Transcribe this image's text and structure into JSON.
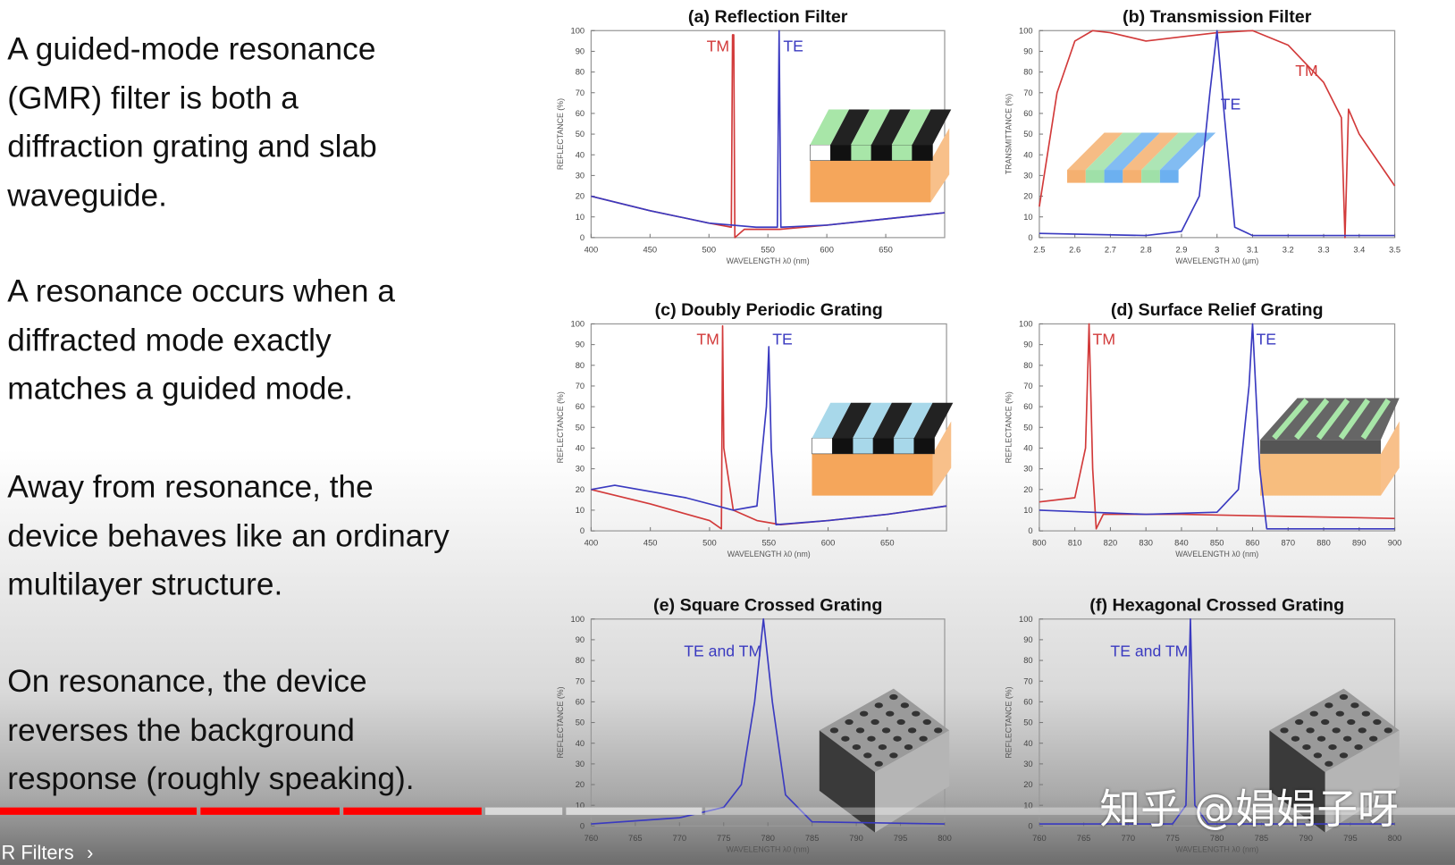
{
  "slide": {
    "paragraphs": [
      "A guided-mode resonance\n(GMR) filter is both a\ndiffraction grating and slab\nwaveguide.",
      "A resonance occurs when a\ndiffracted mode exactly\nmatches a guided mode.",
      "Away from resonance, the\ndevice behaves like an ordinary\nmultilayer structure.",
      "On resonance, the device\nreverses the background\nresponse (roughly speaking)."
    ]
  },
  "player": {
    "chapter_title": "MR Filters",
    "chapter_chevron": "›",
    "progress_fraction": 0.331,
    "buffered_fraction": 0.482,
    "played_color": "#ff0000",
    "buffered_color": "#d9d9d9"
  },
  "watermark": "知乎 @娟娟子呀",
  "colors": {
    "TE": "#3a3ac0",
    "TM": "#d23a3a"
  },
  "chart_data": [
    {
      "id": "a",
      "type": "line",
      "title": "(a) Reflection Filter",
      "xlabel": "WAVELENGTH λ0 (nm)",
      "ylabel": "REFLECTANCE (%)",
      "xlim": [
        400,
        700
      ],
      "ylim": [
        0,
        100
      ],
      "x_ticks": [
        400,
        450,
        500,
        550,
        600,
        650
      ],
      "y_ticks": [
        0,
        10,
        20,
        30,
        40,
        50,
        60,
        70,
        80,
        90,
        100
      ],
      "grid": false,
      "inset": "stripe-grating",
      "series": [
        {
          "name": "TM",
          "color": "#d23a3a",
          "points": [
            [
              400,
              20
            ],
            [
              450,
              13
            ],
            [
              500,
              7
            ],
            [
              519,
              5
            ],
            [
              520,
              98
            ],
            [
              521,
              98
            ],
            [
              522,
              0
            ],
            [
              530,
              4
            ],
            [
              560,
              4
            ],
            [
              600,
              6
            ],
            [
              650,
              9
            ],
            [
              700,
              12
            ]
          ]
        },
        {
          "name": "TE",
          "color": "#3a3ac0",
          "points": [
            [
              400,
              20
            ],
            [
              450,
              13
            ],
            [
              500,
              7
            ],
            [
              540,
              5
            ],
            [
              558,
              5
            ],
            [
              559.5,
              100
            ],
            [
              561,
              5
            ],
            [
              600,
              6
            ],
            [
              650,
              9
            ],
            [
              700,
              12
            ]
          ]
        }
      ],
      "annotations": [
        {
          "text": "TM",
          "x": 498,
          "y": 90,
          "color": "#d23a3a"
        },
        {
          "text": "TE",
          "x": 563,
          "y": 90,
          "color": "#3a3ac0"
        }
      ]
    },
    {
      "id": "b",
      "type": "line",
      "title": "(b) Transmission Filter",
      "xlabel": "WAVELENGTH λ0 (μm)",
      "ylabel": "TRANSMITTANCE (%)",
      "xlim": [
        2.5,
        3.5
      ],
      "ylim": [
        0,
        100
      ],
      "x_ticks": [
        2.5,
        2.6,
        2.7,
        2.8,
        2.9,
        3,
        3.1,
        3.2,
        3.3,
        3.4,
        3.5
      ],
      "y_ticks": [
        0,
        10,
        20,
        30,
        40,
        50,
        60,
        70,
        80,
        90,
        100
      ],
      "grid": false,
      "inset": "multi-stripe",
      "series": [
        {
          "name": "TM",
          "color": "#d23a3a",
          "points": [
            [
              2.5,
              15
            ],
            [
              2.55,
              70
            ],
            [
              2.6,
              95
            ],
            [
              2.65,
              100
            ],
            [
              2.7,
              99
            ],
            [
              2.8,
              95
            ],
            [
              2.9,
              97
            ],
            [
              3.0,
              99
            ],
            [
              3.1,
              100
            ],
            [
              3.2,
              93
            ],
            [
              3.3,
              75
            ],
            [
              3.35,
              58
            ],
            [
              3.36,
              0
            ],
            [
              3.37,
              62
            ],
            [
              3.4,
              50
            ],
            [
              3.5,
              25
            ]
          ]
        },
        {
          "name": "TE",
          "color": "#3a3ac0",
          "points": [
            [
              2.5,
              2
            ],
            [
              2.8,
              1
            ],
            [
              2.9,
              3
            ],
            [
              2.95,
              20
            ],
            [
              2.98,
              70
            ],
            [
              3.0,
              100
            ],
            [
              3.02,
              60
            ],
            [
              3.05,
              5
            ],
            [
              3.1,
              1
            ],
            [
              3.5,
              1
            ]
          ]
        }
      ],
      "annotations": [
        {
          "text": "TM",
          "x": 3.22,
          "y": 78,
          "color": "#d23a3a"
        },
        {
          "text": "TE",
          "x": 3.01,
          "y": 62,
          "color": "#3a3ac0"
        }
      ]
    },
    {
      "id": "c",
      "type": "line",
      "title": "(c) Doubly Periodic Grating",
      "xlabel": "WAVELENGTH λ0 (nm)",
      "ylabel": "REFLECTANCE (%)",
      "xlim": [
        400,
        700
      ],
      "ylim": [
        0,
        100
      ],
      "x_ticks": [
        400,
        450,
        500,
        550,
        600,
        650
      ],
      "y_ticks": [
        0,
        10,
        20,
        30,
        40,
        50,
        60,
        70,
        80,
        90,
        100
      ],
      "grid": false,
      "inset": "double-grating",
      "series": [
        {
          "name": "TM",
          "color": "#d23a3a",
          "points": [
            [
              400,
              20
            ],
            [
              450,
              13
            ],
            [
              500,
              5
            ],
            [
              510,
              1
            ],
            [
              511,
              99
            ],
            [
              512,
              40
            ],
            [
              520,
              10
            ],
            [
              540,
              5
            ],
            [
              560,
              3
            ],
            [
              600,
              5
            ],
            [
              650,
              8
            ],
            [
              700,
              12
            ]
          ]
        },
        {
          "name": "TE",
          "color": "#3a3ac0",
          "points": [
            [
              400,
              20
            ],
            [
              420,
              22
            ],
            [
              480,
              16
            ],
            [
              520,
              10
            ],
            [
              540,
              12
            ],
            [
              548,
              60
            ],
            [
              550,
              89
            ],
            [
              552,
              40
            ],
            [
              556,
              3
            ],
            [
              600,
              5
            ],
            [
              650,
              8
            ],
            [
              700,
              12
            ]
          ]
        }
      ],
      "annotations": [
        {
          "text": "TM",
          "x": 489,
          "y": 90,
          "color": "#d23a3a"
        },
        {
          "text": "TE",
          "x": 553,
          "y": 90,
          "color": "#3a3ac0"
        }
      ]
    },
    {
      "id": "d",
      "type": "line",
      "title": "(d) Surface Relief Grating",
      "xlabel": "WAVELENGTH λ0 (nm)",
      "ylabel": "REFLECTANCE (%)",
      "xlim": [
        800,
        900
      ],
      "ylim": [
        0,
        100
      ],
      "x_ticks": [
        800,
        810,
        820,
        830,
        840,
        850,
        860,
        870,
        880,
        890,
        900
      ],
      "y_ticks": [
        0,
        10,
        20,
        30,
        40,
        50,
        60,
        70,
        80,
        90,
        100
      ],
      "grid": false,
      "inset": "relief-grating",
      "series": [
        {
          "name": "TM",
          "color": "#d23a3a",
          "points": [
            [
              800,
              14
            ],
            [
              810,
              16
            ],
            [
              813,
              40
            ],
            [
              814,
              100
            ],
            [
              815,
              30
            ],
            [
              816,
              1
            ],
            [
              818,
              8
            ],
            [
              840,
              8
            ],
            [
              870,
              7
            ],
            [
              900,
              6
            ]
          ]
        },
        {
          "name": "TE",
          "color": "#3a3ac0",
          "points": [
            [
              800,
              10
            ],
            [
              830,
              8
            ],
            [
              850,
              9
            ],
            [
              856,
              20
            ],
            [
              859,
              70
            ],
            [
              860,
              100
            ],
            [
              862,
              30
            ],
            [
              864,
              1
            ],
            [
              900,
              1
            ]
          ]
        }
      ],
      "annotations": [
        {
          "text": "TM",
          "x": 815,
          "y": 90,
          "color": "#d23a3a"
        },
        {
          "text": "TE",
          "x": 861,
          "y": 90,
          "color": "#3a3ac0"
        }
      ]
    },
    {
      "id": "e",
      "type": "line",
      "title": "(e) Square Crossed Grating",
      "xlabel": "WAVELENGTH λ0 (nm)",
      "ylabel": "REFLECTANCE (%)",
      "xlim": [
        760,
        800
      ],
      "ylim": [
        0,
        100
      ],
      "x_ticks": [
        760,
        765,
        770,
        775,
        780,
        785,
        790,
        795,
        800
      ],
      "y_ticks": [
        0,
        10,
        20,
        30,
        40,
        50,
        60,
        70,
        80,
        90,
        100
      ],
      "grid": false,
      "inset": "hole-array",
      "series": [
        {
          "name": "TE and TM",
          "color": "#3a3ac0",
          "points": [
            [
              760,
              1
            ],
            [
              770,
              4
            ],
            [
              775,
              9
            ],
            [
              777,
              20
            ],
            [
              778.5,
              60
            ],
            [
              779.5,
              100
            ],
            [
              780.5,
              60
            ],
            [
              782,
              15
            ],
            [
              785,
              2
            ],
            [
              800,
              1
            ]
          ]
        }
      ],
      "annotations": [
        {
          "text": "TE and TM",
          "x": 770.5,
          "y": 82,
          "color": "#3a3ac0"
        }
      ]
    },
    {
      "id": "f",
      "type": "line",
      "title": "(f) Hexagonal Crossed Grating",
      "xlabel": "WAVELENGTH λ0 (nm)",
      "ylabel": "REFLECTANCE (%)",
      "xlim": [
        760,
        800
      ],
      "ylim": [
        0,
        100
      ],
      "x_ticks": [
        760,
        765,
        770,
        775,
        780,
        785,
        790,
        795,
        800
      ],
      "y_ticks": [
        0,
        10,
        20,
        30,
        40,
        50,
        60,
        70,
        80,
        90,
        100
      ],
      "grid": false,
      "inset": "hole-array",
      "series": [
        {
          "name": "TE and TM",
          "color": "#3a3ac0",
          "points": [
            [
              760,
              1
            ],
            [
              775,
              1
            ],
            [
              776.5,
              10
            ],
            [
              777,
              100
            ],
            [
              777.5,
              10
            ],
            [
              779,
              1
            ],
            [
              800,
              1
            ]
          ]
        }
      ],
      "annotations": [
        {
          "text": "TE and TM",
          "x": 768,
          "y": 82,
          "color": "#3a3ac0"
        }
      ]
    }
  ]
}
